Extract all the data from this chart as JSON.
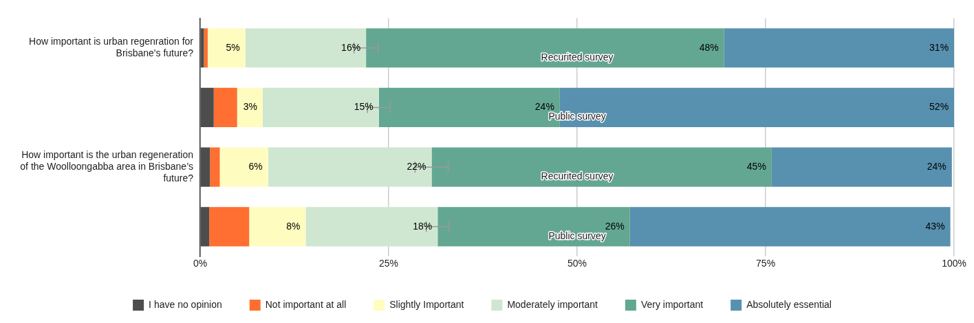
{
  "chart_data": {
    "type": "bar",
    "orientation": "horizontal",
    "stacked": true,
    "categories": [
      "How important is urban regenration for Brisbane's future?",
      null,
      "How important is the urban regeneration of the Woolloongabba area in Brisbane’s future?",
      null
    ],
    "series": [
      {
        "name": "I have no opinion",
        "color": "#4d4d4d",
        "values": [
          0.5,
          1.8,
          1.3,
          1.2
        ]
      },
      {
        "name": "Not important at all",
        "color": "#ff6f31",
        "values": [
          0.5,
          3.1,
          1.3,
          5.3
        ]
      },
      {
        "name": "Slightly Important",
        "color": "#fffcc0",
        "values": [
          5,
          3.4,
          6.4,
          7.5
        ],
        "value_labels": [
          "5%",
          "3%",
          "6%",
          "8%"
        ]
      },
      {
        "name": "Moderately important",
        "color": "#cfe7d0",
        "values": [
          16,
          15.4,
          21.7,
          17.5
        ],
        "value_labels": [
          "16%",
          "15%",
          "22%",
          "18%"
        ],
        "errors": [
          1.6,
          1.5,
          2.2,
          1.5
        ]
      },
      {
        "name": "Very important",
        "color": "#63a793",
        "values": [
          47.5,
          24,
          45.1,
          25.5
        ],
        "value_labels": [
          "48%",
          "24%",
          "45%",
          "26%"
        ]
      },
      {
        "name": "Absolutely essential",
        "color": "#5891af",
        "values": [
          30.5,
          52.3,
          23.9,
          42.5
        ],
        "value_labels": [
          "31%",
          "52%",
          "24%",
          "43%"
        ]
      }
    ],
    "xlim": [
      0,
      100
    ],
    "xticks": [
      {
        "value": 0,
        "label": "0%"
      },
      {
        "value": 25,
        "label": "25%"
      },
      {
        "value": 50,
        "label": "50%"
      },
      {
        "value": 75,
        "label": "75%"
      },
      {
        "value": 100,
        "label": "100%"
      }
    ],
    "grid": "x",
    "legend": "bottom",
    "annotations": [
      "Recurited survey",
      "Public survey",
      "Recurited survey",
      "Public survey"
    ]
  }
}
